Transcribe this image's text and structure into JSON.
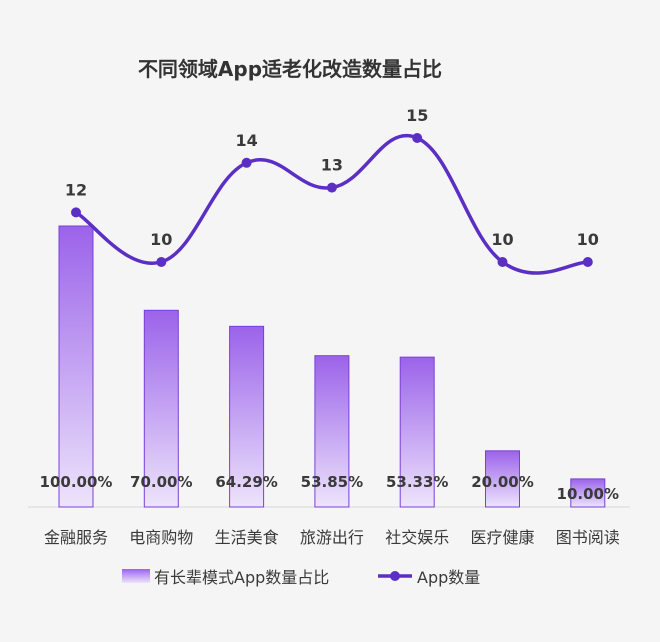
{
  "chart_data": {
    "type": "bar",
    "title": "不同领域App适老化改造数量占比",
    "categories": [
      "金融服务",
      "电商购物",
      "生活美食",
      "旅游出行",
      "社交娱乐",
      "医疗健康",
      "图书阅读"
    ],
    "series": [
      {
        "name": "有长辈模式App数量占比",
        "type": "bar",
        "values": [
          100.0,
          70.0,
          64.29,
          53.85,
          53.33,
          20.0,
          10.0
        ],
        "labels": [
          "100.00%",
          "70.00%",
          "64.29%",
          "53.85%",
          "53.33%",
          "20.00%",
          "10.00%"
        ]
      },
      {
        "name": "App数量",
        "type": "line",
        "values": [
          12,
          10,
          14,
          13,
          15,
          10,
          10
        ],
        "labels": [
          "12",
          "10",
          "14",
          "13",
          "15",
          "10",
          "10"
        ]
      }
    ],
    "colors": {
      "bar_top": "#9b63ea",
      "bar_bottom": "#ede4fb",
      "bar_stroke": "#7b3fd9",
      "line": "#5b2fc4"
    },
    "grid": false,
    "legend": "bottom"
  }
}
